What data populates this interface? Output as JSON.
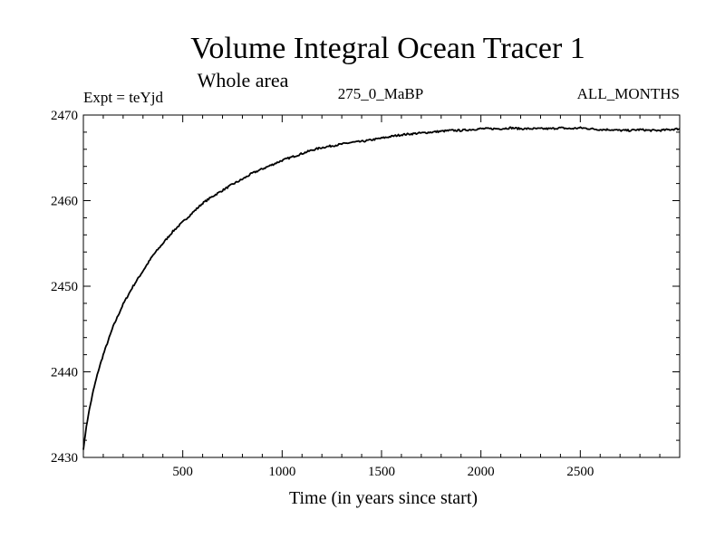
{
  "chart_data": {
    "type": "line",
    "title": "Volume Integral Ocean Tracer 1",
    "subtitle": "Whole area",
    "info_left": "Expt = teYjd",
    "info_center": "275_0_MaBP",
    "info_right": "ALL_MONTHS",
    "xlabel": "Time (in years since start)",
    "ylabel": "",
    "xlim": [
      0,
      3000
    ],
    "ylim": [
      2430,
      2470
    ],
    "xticks": [
      500,
      1000,
      1500,
      2000,
      2500
    ],
    "yticks": [
      2430,
      2440,
      2450,
      2460,
      2470
    ],
    "grid": false,
    "color": "#000000",
    "series": [
      {
        "x": [
          0,
          10,
          25,
          50,
          75,
          100,
          150,
          200,
          250,
          300,
          350,
          400,
          450,
          500,
          550,
          600,
          650,
          700,
          750,
          800,
          850,
          900,
          950,
          1000,
          1050,
          1100,
          1150,
          1200,
          1250,
          1300,
          1350,
          1400,
          1450,
          1500,
          1550,
          1600,
          1650,
          1700,
          1750,
          1800,
          1850,
          1900,
          1950,
          2000,
          2050,
          2100,
          2150,
          2200,
          2250,
          2300,
          2350,
          2400,
          2450,
          2500,
          2550,
          2600,
          2650,
          2700,
          2750,
          2800,
          2850,
          2900,
          2950,
          3000
        ],
        "y": [
          2430.9,
          2432.8,
          2435.0,
          2437.8,
          2440.1,
          2442.0,
          2445.3,
          2447.9,
          2450.0,
          2451.8,
          2453.6,
          2455.0,
          2456.4,
          2457.5,
          2458.6,
          2459.7,
          2460.5,
          2461.2,
          2461.9,
          2462.5,
          2463.2,
          2463.7,
          2464.2,
          2464.7,
          2465.1,
          2465.5,
          2465.9,
          2466.2,
          2466.4,
          2466.6,
          2466.8,
          2466.9,
          2467.1,
          2467.3,
          2467.5,
          2467.7,
          2467.8,
          2467.9,
          2468.0,
          2468.1,
          2468.2,
          2468.2,
          2468.3,
          2468.4,
          2468.4,
          2468.4,
          2468.5,
          2468.4,
          2468.4,
          2468.4,
          2468.4,
          2468.5,
          2468.4,
          2468.5,
          2468.4,
          2468.3,
          2468.3,
          2468.2,
          2468.2,
          2468.3,
          2468.2,
          2468.2,
          2468.3,
          2468.4
        ]
      }
    ]
  }
}
